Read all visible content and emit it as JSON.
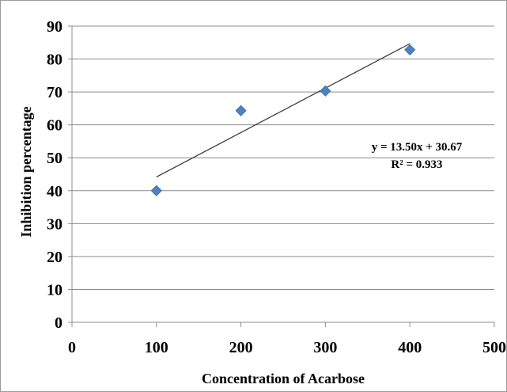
{
  "chart_data": {
    "type": "scatter",
    "xlabel": "Concentration of Acarbose",
    "ylabel": "Inhibition percentage",
    "xlim": [
      0,
      500
    ],
    "ylim": [
      0,
      90
    ],
    "x_ticks": [
      "0",
      "100",
      "200",
      "300",
      "400",
      "500"
    ],
    "y_ticks": [
      "0",
      "10",
      "20",
      "30",
      "40",
      "50",
      "60",
      "70",
      "80",
      "90"
    ],
    "grid": "horizontal",
    "marker_color": "#4f81bd",
    "points": [
      {
        "x": 100,
        "y": 40.0
      },
      {
        "x": 200,
        "y": 64.3
      },
      {
        "x": 300,
        "y": 70.3
      },
      {
        "x": 400,
        "y": 82.8
      }
    ],
    "trendline": {
      "type": "linear",
      "slope": 13.5,
      "intercept": 30.67,
      "x_range": [
        100,
        400
      ],
      "color": "#333333"
    },
    "annotation": {
      "equation": "y = 13.50x + 30.67",
      "r2": "R² = 0.933"
    }
  }
}
